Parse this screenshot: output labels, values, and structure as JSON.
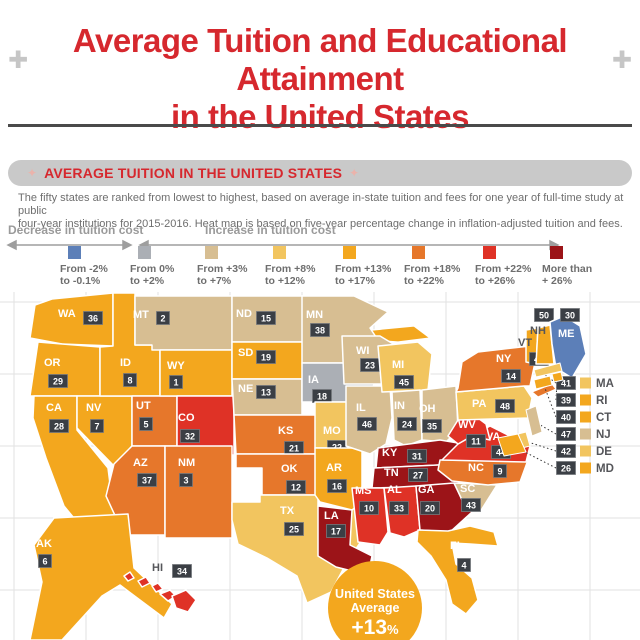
{
  "header": {
    "plus_left": "✚",
    "plus_right": "✚",
    "title_line1": "Average Tuition and Educational Attainment",
    "title_line2": "in the United States"
  },
  "section": {
    "sparkle": "✦",
    "banner_title": "AVERAGE TUITION IN THE UNITED STATES",
    "description_line1": "The fifty states are ranked from lowest to highest, based on average in-state tuition and fees for one year of full-time study at public",
    "description_line2": "four-year institutions for 2015-2016. Heat map is based on five-year percentage change in inflation-adjusted tuition and fees."
  },
  "scale": {
    "decrease_label": "Decrease in tuition cost",
    "increase_label": "Increase in tuition cost"
  },
  "legend": [
    {
      "line1": "From -2%",
      "line2": "to -0.1%",
      "bucket": "blue"
    },
    {
      "line1": "From 0%",
      "line2": "to +2%",
      "bucket": "gray"
    },
    {
      "line1": "From +3%",
      "line2": "to +7%",
      "bucket": "tan"
    },
    {
      "line1": "From +8%",
      "line2": "to +12%",
      "bucket": "lightgold"
    },
    {
      "line1": "From +13%",
      "line2": "to +17%",
      "bucket": "gold"
    },
    {
      "line1": "From +18%",
      "line2": "to +22%",
      "bucket": "orange"
    },
    {
      "line1": "From +22%",
      "line2": "to +26%",
      "bucket": "red"
    },
    {
      "line1": "More than",
      "line2": "+ 26%",
      "bucket": "darkred"
    }
  ],
  "colors": {
    "blue": "#5C7FB8",
    "gray": "#ABAFB5",
    "tan": "#D7BE92",
    "lightgold": "#F2C55F",
    "gold": "#F3A71E",
    "orange": "#E6772B",
    "red": "#DF3226",
    "darkred": "#9C1418",
    "title_red": "#D6282E",
    "badge": "#3B3F45",
    "badge_border": "#75787C",
    "grid": "#E2E2E2",
    "dark_label": "#55565A",
    "white": "#FFFFFF"
  },
  "chart_data": {
    "type": "heatmap",
    "title": "AVERAGE TUITION IN THE UNITED STATES",
    "note": "States ranked 1-50 from lowest to highest average in-state tuition and fees, 2015-2016; color = five-year % change bucket",
    "legend_position": "top",
    "states": [
      {
        "abbr": "WA",
        "rank": 36,
        "bucket": "gold"
      },
      {
        "abbr": "OR",
        "rank": 29,
        "bucket": "gold"
      },
      {
        "abbr": "CA",
        "rank": 28,
        "bucket": "gold"
      },
      {
        "abbr": "NV",
        "rank": 7,
        "bucket": "gold"
      },
      {
        "abbr": "ID",
        "rank": 8,
        "bucket": "gold"
      },
      {
        "abbr": "UT",
        "rank": 5,
        "bucket": "orange"
      },
      {
        "abbr": "AZ",
        "rank": 37,
        "bucket": "orange"
      },
      {
        "abbr": "MT",
        "rank": 2,
        "bucket": "tan"
      },
      {
        "abbr": "WY",
        "rank": 1,
        "bucket": "gold"
      },
      {
        "abbr": "CO",
        "rank": 32,
        "bucket": "red"
      },
      {
        "abbr": "NM",
        "rank": 3,
        "bucket": "orange"
      },
      {
        "abbr": "ND",
        "rank": 15,
        "bucket": "tan"
      },
      {
        "abbr": "SD",
        "rank": 19,
        "bucket": "gold"
      },
      {
        "abbr": "NE",
        "rank": 13,
        "bucket": "tan"
      },
      {
        "abbr": "KS",
        "rank": 21,
        "bucket": "orange"
      },
      {
        "abbr": "OK",
        "rank": 12,
        "bucket": "orange"
      },
      {
        "abbr": "TX",
        "rank": 25,
        "bucket": "lightgold"
      },
      {
        "abbr": "MN",
        "rank": 38,
        "bucket": "tan"
      },
      {
        "abbr": "IA",
        "rank": 18,
        "bucket": "gray"
      },
      {
        "abbr": "MO",
        "rank": 22,
        "bucket": "lightgold"
      },
      {
        "abbr": "AR",
        "rank": 16,
        "bucket": "gold"
      },
      {
        "abbr": "LA",
        "rank": 17,
        "bucket": "darkred"
      },
      {
        "abbr": "WI",
        "rank": 23,
        "bucket": "tan"
      },
      {
        "abbr": "IL",
        "rank": 46,
        "bucket": "tan"
      },
      {
        "abbr": "MI",
        "rank": 45,
        "bucket": "lightgold"
      },
      {
        "abbr": "IN",
        "rank": 24,
        "bucket": "tan"
      },
      {
        "abbr": "OH",
        "rank": 35,
        "bucket": "tan"
      },
      {
        "abbr": "KY",
        "rank": 31,
        "bucket": "darkred"
      },
      {
        "abbr": "TN",
        "rank": 27,
        "bucket": "darkred"
      },
      {
        "abbr": "MS",
        "rank": 10,
        "bucket": "red"
      },
      {
        "abbr": "AL",
        "rank": 33,
        "bucket": "red"
      },
      {
        "abbr": "GA",
        "rank": 20,
        "bucket": "darkred"
      },
      {
        "abbr": "FL",
        "rank": 4,
        "bucket": "gold"
      },
      {
        "abbr": "SC",
        "rank": 43,
        "bucket": "tan"
      },
      {
        "abbr": "NC",
        "rank": 9,
        "bucket": "orange"
      },
      {
        "abbr": "VA",
        "rank": 44,
        "bucket": "red"
      },
      {
        "abbr": "WV",
        "rank": 11,
        "bucket": "red"
      },
      {
        "abbr": "PA",
        "rank": 48,
        "bucket": "lightgold"
      },
      {
        "abbr": "NY",
        "rank": 14,
        "bucket": "orange"
      },
      {
        "abbr": "VT",
        "rank": 49,
        "bucket": "gold"
      },
      {
        "abbr": "NH",
        "rank": 50,
        "bucket": "gold"
      },
      {
        "abbr": "ME",
        "rank": 30,
        "bucket": "blue"
      },
      {
        "abbr": "AK",
        "rank": 6,
        "bucket": "gold"
      },
      {
        "abbr": "HI",
        "rank": 34,
        "bucket": "red"
      }
    ],
    "small_states": [
      {
        "abbr": "MA",
        "rank": 41,
        "bucket": "lightgold"
      },
      {
        "abbr": "RI",
        "rank": 39,
        "bucket": "gold"
      },
      {
        "abbr": "CT",
        "rank": 40,
        "bucket": "gold"
      },
      {
        "abbr": "NJ",
        "rank": 47,
        "bucket": "tan"
      },
      {
        "abbr": "DE",
        "rank": 42,
        "bucket": "lightgold"
      },
      {
        "abbr": "MD",
        "rank": 26,
        "bucket": "gold"
      }
    ],
    "us_average": {
      "line1": "United States",
      "line2": "Average",
      "value": "+13",
      "unit": "%"
    }
  }
}
